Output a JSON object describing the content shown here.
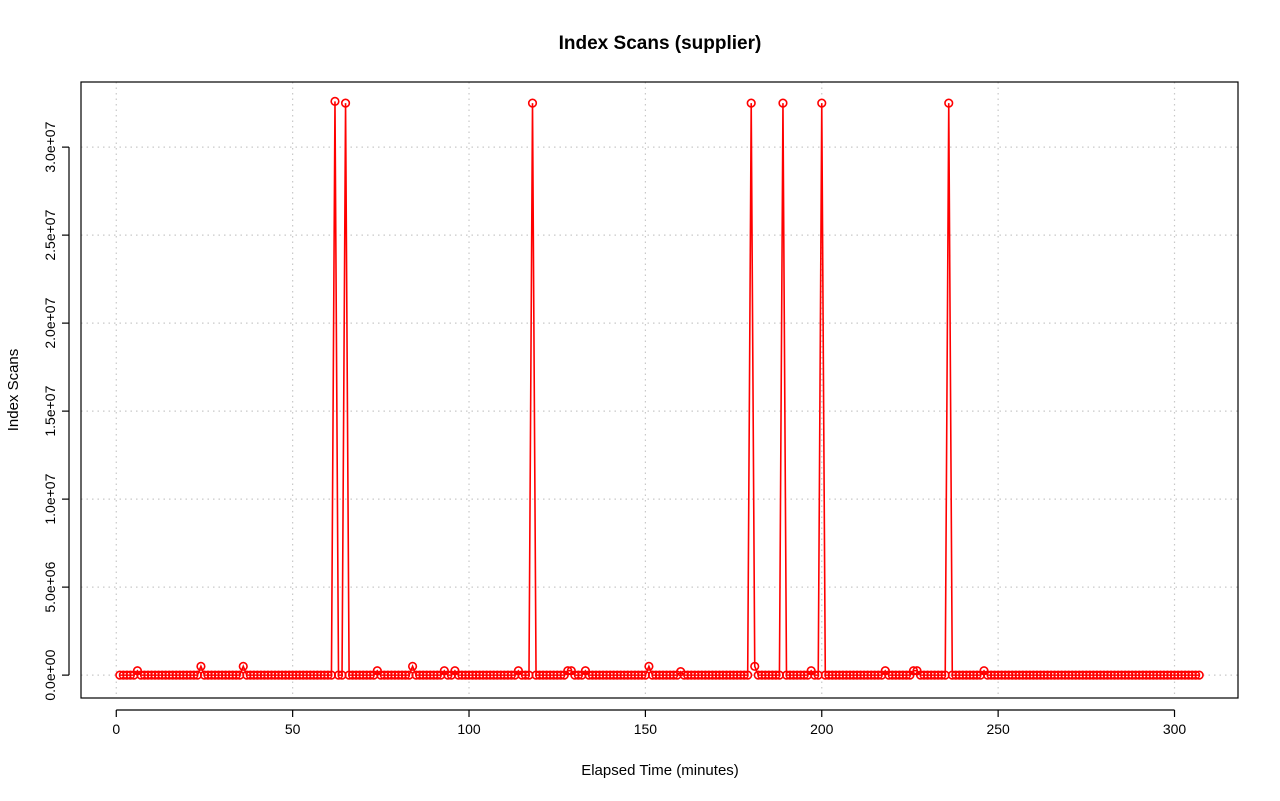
{
  "chart_data": {
    "type": "line",
    "title": "Index Scans (supplier)",
    "xlabel": "Elapsed Time (minutes)",
    "ylabel": "Index Scans",
    "xlim": [
      -10,
      318
    ],
    "ylim": [
      -1300000,
      33700000
    ],
    "x_ticks": [
      0,
      50,
      100,
      150,
      200,
      250,
      300
    ],
    "x_tick_labels": [
      "0",
      "50",
      "100",
      "150",
      "200",
      "250",
      "300"
    ],
    "y_ticks": [
      0,
      5000000,
      10000000,
      15000000,
      20000000,
      25000000,
      30000000
    ],
    "y_tick_labels": [
      "0.0e+00",
      "5.0e+06",
      "1.0e+07",
      "1.5e+07",
      "2.0e+07",
      "2.5e+07",
      "3.0e+07"
    ],
    "grid": true,
    "series": [
      {
        "color": "#ff0000",
        "x_start": 1,
        "x_end": 307,
        "baseline": 0,
        "spikes": [
          [
            6,
            250000
          ],
          [
            24,
            500000
          ],
          [
            36,
            500000
          ],
          [
            62,
            32600000
          ],
          [
            65,
            32500000
          ],
          [
            74,
            250000
          ],
          [
            84,
            500000
          ],
          [
            93,
            250000
          ],
          [
            96,
            250000
          ],
          [
            114,
            250000
          ],
          [
            118,
            32500000
          ],
          [
            128,
            250000
          ],
          [
            129,
            250000
          ],
          [
            133,
            250000
          ],
          [
            151,
            500000
          ],
          [
            160,
            200000
          ],
          [
            180,
            32500000
          ],
          [
            181,
            500000
          ],
          [
            189,
            32500000
          ],
          [
            197,
            250000
          ],
          [
            200,
            32500000
          ],
          [
            218,
            250000
          ],
          [
            226,
            250000
          ],
          [
            227,
            250000
          ],
          [
            236,
            32500000
          ],
          [
            246,
            250000
          ]
        ]
      }
    ]
  }
}
